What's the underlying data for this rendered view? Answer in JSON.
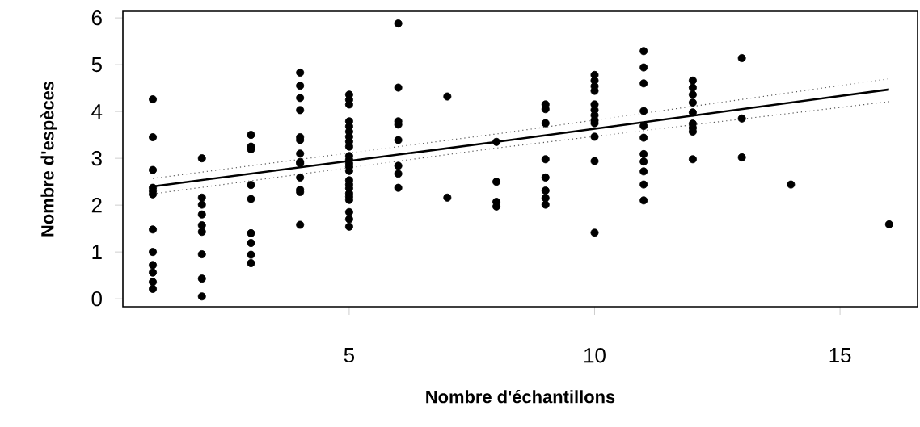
{
  "chart_data": {
    "type": "scatter",
    "xlabel": "Nombre d'échantillons",
    "ylabel": "Nombre d'espèces",
    "xlim": [
      0.39,
      16.58
    ],
    "ylim": [
      -0.17,
      6.14
    ],
    "xticks": [
      5,
      10,
      15
    ],
    "yticks": [
      0,
      1,
      2,
      3,
      4,
      5,
      6
    ],
    "grid": false,
    "marker": "circle",
    "series": [
      {
        "color": "#000000",
        "x": [
          1,
          1,
          1,
          1,
          1,
          1,
          1,
          1,
          1,
          1,
          1,
          1,
          2,
          2,
          2,
          2,
          2,
          2,
          2,
          2,
          2,
          3,
          3,
          3,
          3,
          3,
          3,
          3,
          3,
          3,
          4,
          4,
          4,
          4,
          4,
          4,
          4,
          4,
          4,
          4,
          4,
          4,
          4,
          5,
          5,
          5,
          5,
          5,
          5,
          5,
          5,
          5,
          5,
          5,
          5,
          5,
          5,
          5,
          5,
          5,
          5,
          5,
          5,
          5,
          5,
          5,
          6,
          6,
          6,
          6,
          6,
          6,
          6,
          6,
          7,
          7,
          8,
          8,
          8,
          8,
          9,
          9,
          9,
          9,
          9,
          9,
          9,
          9,
          10,
          10,
          10,
          10,
          10,
          10,
          10,
          10,
          10,
          10,
          10,
          10,
          11,
          11,
          11,
          11,
          11,
          11,
          11,
          11,
          11,
          11,
          11,
          12,
          12,
          12,
          12,
          12,
          12,
          12,
          12,
          12,
          13,
          13,
          13,
          14,
          16
        ],
        "values": [
          4.26,
          3.45,
          2.75,
          2.37,
          2.3,
          2.23,
          1.48,
          1.0,
          0.72,
          0.56,
          0.36,
          0.21,
          3.0,
          2.16,
          2.01,
          1.8,
          1.57,
          1.43,
          0.95,
          0.43,
          0.05,
          3.5,
          3.25,
          3.19,
          2.43,
          2.13,
          1.4,
          1.19,
          0.94,
          0.76,
          4.83,
          4.55,
          4.29,
          4.03,
          3.45,
          3.39,
          3.1,
          2.92,
          2.89,
          2.59,
          2.33,
          2.28,
          1.58,
          4.36,
          4.25,
          4.15,
          3.79,
          3.68,
          3.57,
          3.46,
          3.36,
          3.25,
          3.05,
          2.97,
          2.89,
          2.82,
          2.73,
          2.53,
          2.44,
          2.36,
          2.25,
          2.18,
          2.11,
          1.85,
          1.7,
          1.54,
          5.88,
          4.51,
          3.79,
          3.72,
          3.39,
          2.84,
          2.67,
          2.37,
          4.32,
          2.16,
          3.35,
          2.5,
          2.07,
          1.97,
          4.15,
          4.05,
          3.75,
          2.98,
          2.59,
          2.31,
          2.15,
          2.01,
          4.78,
          4.66,
          4.54,
          4.44,
          4.15,
          4.03,
          3.92,
          3.81,
          3.75,
          3.46,
          2.94,
          1.41,
          5.29,
          4.94,
          4.6,
          4.01,
          3.69,
          3.44,
          3.09,
          2.93,
          2.72,
          2.44,
          2.1,
          4.66,
          4.51,
          4.36,
          4.19,
          3.98,
          3.74,
          3.65,
          3.57,
          2.98,
          5.14,
          3.85,
          3.02,
          2.44,
          1.59
        ]
      },
      {
        "type": "line",
        "color": "#000000",
        "marker": "none",
        "line_style": "solid",
        "x": [
          1,
          8,
          16
        ],
        "values": [
          2.4,
          3.35,
          4.47
        ]
      },
      {
        "type": "line",
        "color": "#555555",
        "marker": "none",
        "line_style": "dotted",
        "x": [
          1,
          8,
          16
        ],
        "values": [
          2.57,
          3.52,
          4.7
        ]
      },
      {
        "type": "line",
        "color": "#555555",
        "marker": "none",
        "line_style": "dotted",
        "x": [
          1,
          8,
          16
        ],
        "values": [
          2.24,
          3.22,
          4.21
        ]
      }
    ]
  }
}
